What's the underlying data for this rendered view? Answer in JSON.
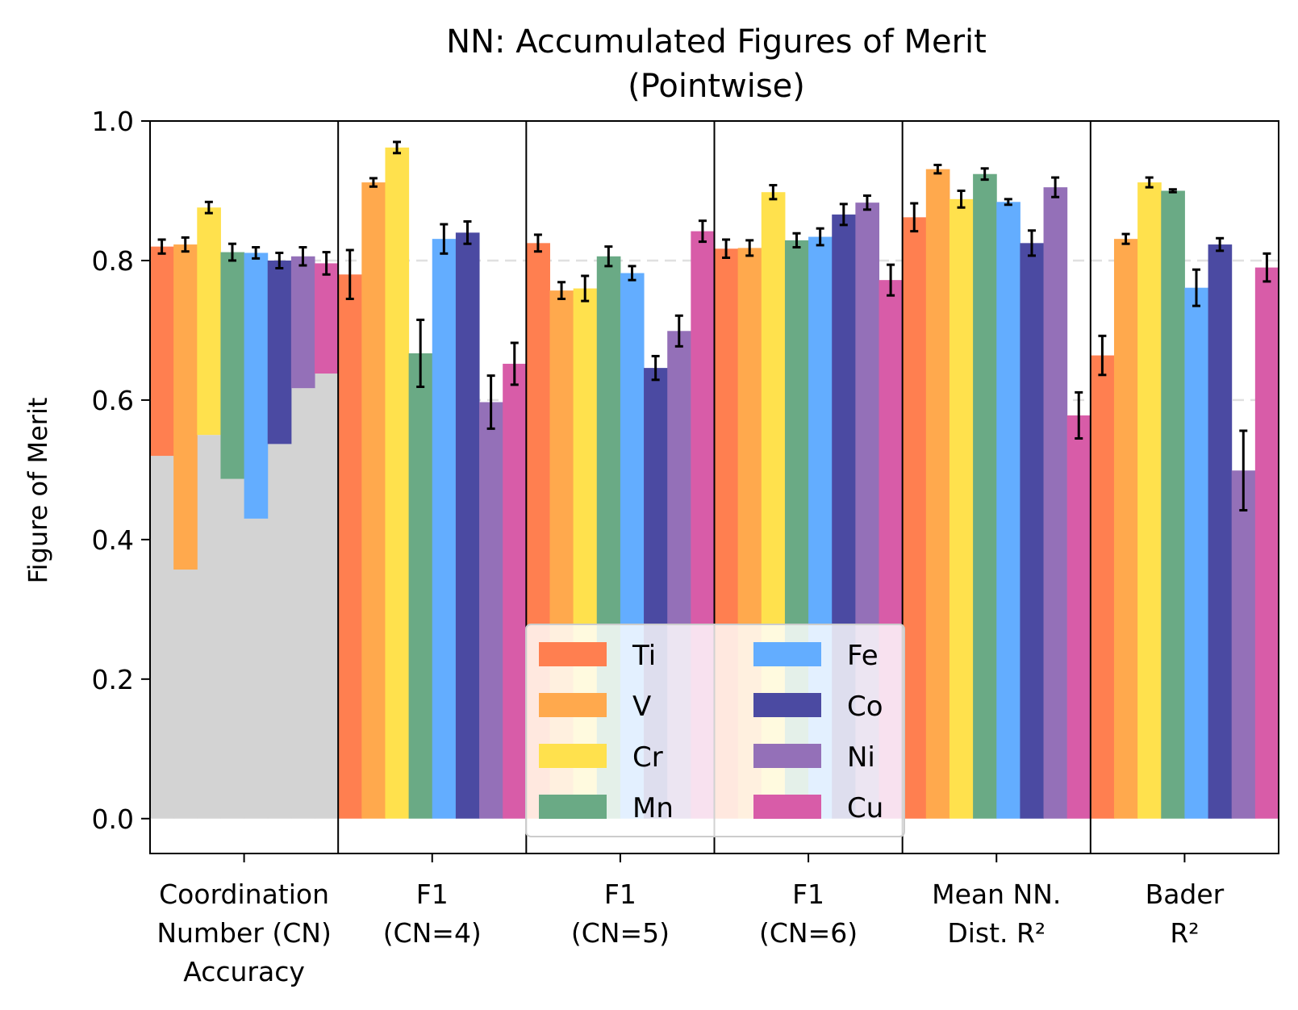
{
  "chart_data": {
    "type": "bar",
    "title": "NN: Accumulated Figures of Merit",
    "subtitle": "(Pointwise)",
    "ylabel": "Figure of Merit",
    "ylim": [
      -0.05,
      1.0
    ],
    "yticks": [
      "0.0",
      "0.2",
      "0.4",
      "0.6",
      "0.8",
      "1.0"
    ],
    "grid": "horizontal dashed",
    "legend_position": "bottom-center",
    "categories": [
      {
        "lines": [
          "Coordination",
          "Number (CN)",
          "Accuracy"
        ]
      },
      {
        "lines": [
          "F1",
          "(CN=4)"
        ]
      },
      {
        "lines": [
          "F1",
          "(CN=5)"
        ]
      },
      {
        "lines": [
          "F1",
          "(CN=6)"
        ]
      },
      {
        "lines": [
          "Mean NN.",
          "Dist. R²"
        ]
      },
      {
        "lines": [
          "Bader",
          "R²"
        ]
      }
    ],
    "series": [
      {
        "name": "Ti",
        "color": "#ff7f50",
        "values": [
          0.82,
          0.78,
          0.825,
          0.817,
          0.862,
          0.664
        ],
        "errors": [
          0.01,
          0.035,
          0.012,
          0.013,
          0.02,
          0.028
        ],
        "baseline": 0.52
      },
      {
        "name": "V",
        "color": "#ffa94d",
        "values": [
          0.823,
          0.912,
          0.757,
          0.818,
          0.931,
          0.831
        ],
        "errors": [
          0.01,
          0.006,
          0.012,
          0.011,
          0.006,
          0.007
        ],
        "baseline": 0.357
      },
      {
        "name": "Cr",
        "color": "#ffe14d",
        "values": [
          0.876,
          0.962,
          0.76,
          0.898,
          0.888,
          0.912
        ],
        "errors": [
          0.008,
          0.008,
          0.018,
          0.01,
          0.012,
          0.007
        ],
        "baseline": 0.55
      },
      {
        "name": "Mn",
        "color": "#6aaa85",
        "values": [
          0.812,
          0.667,
          0.806,
          0.829,
          0.924,
          0.9
        ],
        "errors": [
          0.012,
          0.048,
          0.014,
          0.01,
          0.008,
          0.002
        ],
        "baseline": 0.487
      },
      {
        "name": "Fe",
        "color": "#63adff",
        "values": [
          0.811,
          0.831,
          0.782,
          0.834,
          0.884,
          0.761
        ],
        "errors": [
          0.008,
          0.021,
          0.01,
          0.012,
          0.004,
          0.026
        ],
        "baseline": 0.43
      },
      {
        "name": "Co",
        "color": "#4b4aa2",
        "values": [
          0.8,
          0.84,
          0.646,
          0.866,
          0.825,
          0.823
        ],
        "errors": [
          0.011,
          0.016,
          0.017,
          0.015,
          0.018,
          0.009
        ],
        "baseline": 0.537
      },
      {
        "name": "Ni",
        "color": "#9470b8",
        "values": [
          0.806,
          0.597,
          0.699,
          0.883,
          0.905,
          0.499
        ],
        "errors": [
          0.013,
          0.038,
          0.022,
          0.01,
          0.014,
          0.057
        ],
        "baseline": 0.617
      },
      {
        "name": "Cu",
        "color": "#d85ca8",
        "values": [
          0.796,
          0.652,
          0.842,
          0.772,
          0.578,
          0.79
        ],
        "errors": [
          0.016,
          0.03,
          0.015,
          0.022,
          0.033,
          0.02
        ],
        "baseline": 0.638
      }
    ],
    "baseline_color": "#d3d3d3"
  }
}
